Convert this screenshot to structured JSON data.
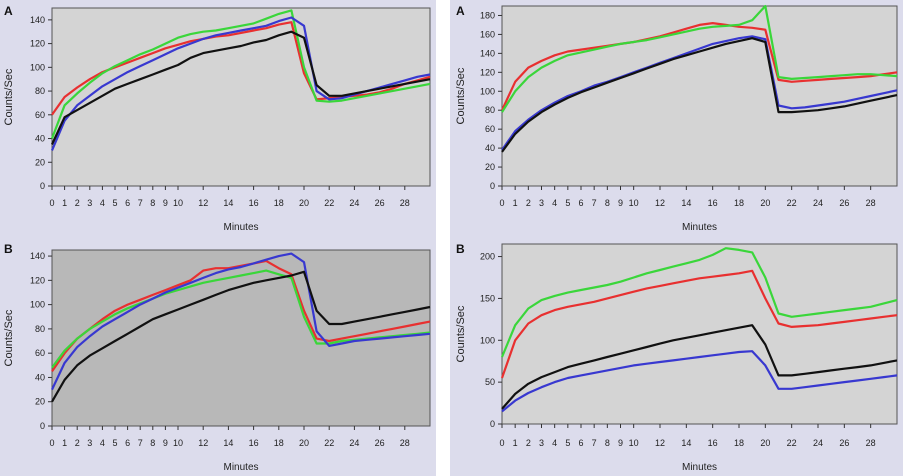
{
  "chart_data": [
    {
      "panel": "A",
      "type": "line",
      "xlabel": "Minutes",
      "ylabel": "Counts/Sec",
      "xlim": [
        0,
        30
      ],
      "ylim": [
        0,
        150
      ],
      "xticks": [
        "0",
        "1",
        "2",
        "3",
        "4",
        "5",
        "6",
        "7",
        "8",
        "9",
        "10",
        "12",
        "14",
        "16",
        "18",
        "20",
        "22",
        "24",
        "26",
        "28"
      ],
      "yticks": [
        0,
        20,
        40,
        60,
        80,
        100,
        120,
        140
      ],
      "x": [
        0,
        1,
        2,
        3,
        4,
        5,
        6,
        7,
        8,
        9,
        10,
        11,
        12,
        13,
        14,
        15,
        16,
        17,
        18,
        19,
        20,
        21,
        22,
        23,
        24,
        25,
        26,
        27,
        28,
        29,
        30
      ],
      "series": [
        {
          "name": "red",
          "color": "#e83030",
          "values": [
            60,
            75,
            83,
            90,
            96,
            100,
            104,
            108,
            112,
            116,
            119,
            122,
            124,
            126,
            127,
            129,
            131,
            133,
            136,
            138,
            95,
            73,
            74,
            75,
            76,
            77,
            79,
            82,
            86,
            89,
            92
          ]
        },
        {
          "name": "green",
          "color": "#3ad63a",
          "values": [
            40,
            68,
            78,
            87,
            95,
            101,
            106,
            111,
            115,
            120,
            125,
            128,
            130,
            131,
            133,
            135,
            137,
            141,
            145,
            148,
            100,
            72,
            71,
            72,
            74,
            76,
            78,
            80,
            82,
            84,
            86
          ]
        },
        {
          "name": "blue",
          "color": "#3838d0",
          "values": [
            30,
            55,
            68,
            76,
            84,
            90,
            96,
            101,
            106,
            111,
            116,
            120,
            124,
            127,
            129,
            131,
            133,
            135,
            139,
            142,
            135,
            80,
            73,
            74,
            77,
            80,
            83,
            86,
            89,
            92,
            94
          ]
        },
        {
          "name": "black",
          "color": "#111111",
          "values": [
            35,
            58,
            64,
            70,
            76,
            82,
            86,
            90,
            94,
            98,
            102,
            108,
            112,
            114,
            116,
            118,
            121,
            123,
            127,
            130,
            125,
            85,
            76,
            76,
            78,
            80,
            82,
            84,
            86,
            88,
            90
          ]
        }
      ]
    },
    {
      "panel": "B",
      "type": "line",
      "xlabel": "Minutes",
      "ylabel": "Counts/Sec",
      "xlim": [
        0,
        30
      ],
      "ylim": [
        0,
        145
      ],
      "xticks": [
        "0",
        "1",
        "2",
        "3",
        "4",
        "5",
        "6",
        "7",
        "8",
        "9",
        "10",
        "12",
        "14",
        "16",
        "18",
        "20",
        "22",
        "24",
        "26",
        "28"
      ],
      "yticks": [
        0,
        20,
        40,
        60,
        80,
        100,
        120,
        140
      ],
      "x": [
        0,
        1,
        2,
        3,
        4,
        5,
        6,
        7,
        8,
        9,
        10,
        11,
        12,
        13,
        14,
        15,
        16,
        17,
        18,
        19,
        20,
        21,
        22,
        23,
        24,
        25,
        26,
        27,
        28,
        29,
        30
      ],
      "series": [
        {
          "name": "red",
          "color": "#e83030",
          "values": [
            45,
            60,
            72,
            80,
            88,
            95,
            100,
            104,
            108,
            112,
            116,
            120,
            128,
            130,
            130,
            132,
            134,
            136,
            130,
            125,
            95,
            72,
            70,
            72,
            74,
            76,
            78,
            80,
            82,
            84,
            86
          ]
        },
        {
          "name": "green",
          "color": "#3ad63a",
          "values": [
            48,
            62,
            72,
            80,
            86,
            92,
            97,
            101,
            105,
            109,
            112,
            115,
            118,
            120,
            122,
            124,
            126,
            128,
            125,
            122,
            90,
            68,
            68,
            70,
            71,
            72,
            73,
            74,
            75,
            76,
            77
          ]
        },
        {
          "name": "blue",
          "color": "#3838d0",
          "values": [
            30,
            52,
            65,
            74,
            82,
            88,
            94,
            100,
            105,
            110,
            114,
            118,
            122,
            126,
            129,
            131,
            134,
            137,
            140,
            142,
            135,
            78,
            66,
            68,
            70,
            71,
            72,
            73,
            74,
            75,
            76
          ]
        },
        {
          "name": "black",
          "color": "#111111",
          "values": [
            20,
            38,
            50,
            58,
            64,
            70,
            76,
            82,
            88,
            92,
            96,
            100,
            104,
            108,
            112,
            115,
            118,
            120,
            122,
            124,
            127,
            95,
            84,
            84,
            86,
            88,
            90,
            92,
            94,
            96,
            98
          ]
        }
      ]
    },
    {
      "panel": "A",
      "type": "line",
      "xlabel": "Minutes",
      "ylabel": "Counts/Sec",
      "xlim": [
        0,
        30
      ],
      "ylim": [
        0,
        190
      ],
      "xticks": [
        "0",
        "1",
        "2",
        "3",
        "4",
        "5",
        "6",
        "7",
        "8",
        "9",
        "10",
        "12",
        "14",
        "16",
        "18",
        "20",
        "22",
        "24",
        "26",
        "28"
      ],
      "yticks": [
        0,
        20,
        40,
        60,
        80,
        100,
        120,
        140,
        160,
        180
      ],
      "x": [
        0,
        1,
        2,
        3,
        4,
        5,
        6,
        7,
        8,
        9,
        10,
        11,
        12,
        13,
        14,
        15,
        16,
        17,
        18,
        19,
        20,
        21,
        22,
        23,
        24,
        25,
        26,
        27,
        28,
        29,
        30
      ],
      "series": [
        {
          "name": "red",
          "color": "#e83030",
          "values": [
            80,
            110,
            125,
            132,
            138,
            142,
            144,
            146,
            148,
            150,
            152,
            155,
            158,
            162,
            166,
            170,
            172,
            170,
            168,
            167,
            165,
            112,
            110,
            111,
            112,
            113,
            114,
            115,
            116,
            118,
            120
          ]
        },
        {
          "name": "green",
          "color": "#3ad63a",
          "values": [
            78,
            100,
            115,
            125,
            132,
            138,
            141,
            144,
            147,
            150,
            152,
            154,
            157,
            160,
            163,
            166,
            168,
            169,
            170,
            175,
            190,
            115,
            113,
            114,
            115,
            116,
            117,
            118,
            118,
            117,
            116
          ]
        },
        {
          "name": "blue",
          "color": "#3838d0",
          "values": [
            38,
            58,
            70,
            80,
            88,
            95,
            100,
            106,
            110,
            115,
            120,
            125,
            130,
            135,
            140,
            145,
            150,
            153,
            156,
            158,
            155,
            85,
            82,
            83,
            85,
            87,
            89,
            92,
            95,
            98,
            101
          ]
        },
        {
          "name": "black",
          "color": "#111111",
          "values": [
            36,
            55,
            68,
            78,
            86,
            93,
            99,
            104,
            109,
            114,
            119,
            124,
            129,
            134,
            138,
            142,
            146,
            150,
            153,
            156,
            152,
            78,
            78,
            79,
            80,
            82,
            84,
            87,
            90,
            93,
            96
          ]
        }
      ]
    },
    {
      "panel": "B",
      "type": "line",
      "xlabel": "Minutes",
      "ylabel": "Counts/Sec",
      "xlim": [
        0,
        30
      ],
      "ylim": [
        0,
        215
      ],
      "xticks": [
        "0",
        "1",
        "2",
        "3",
        "4",
        "5",
        "6",
        "7",
        "8",
        "9",
        "10",
        "12",
        "14",
        "16",
        "18",
        "20",
        "22",
        "24",
        "26",
        "28"
      ],
      "yticks": [
        0,
        50,
        100,
        150,
        200
      ],
      "x": [
        0,
        1,
        2,
        3,
        4,
        5,
        6,
        7,
        8,
        9,
        10,
        11,
        12,
        13,
        14,
        15,
        16,
        17,
        18,
        19,
        20,
        21,
        22,
        23,
        24,
        25,
        26,
        27,
        28,
        29,
        30
      ],
      "series": [
        {
          "name": "green",
          "color": "#3ad63a",
          "values": [
            80,
            118,
            138,
            148,
            153,
            157,
            160,
            163,
            166,
            170,
            175,
            180,
            184,
            188,
            192,
            196,
            202,
            210,
            208,
            205,
            175,
            132,
            128,
            130,
            132,
            134,
            136,
            138,
            140,
            144,
            148
          ]
        },
        {
          "name": "red",
          "color": "#e83030",
          "values": [
            55,
            100,
            120,
            130,
            136,
            140,
            143,
            146,
            150,
            154,
            158,
            162,
            165,
            168,
            171,
            174,
            176,
            178,
            180,
            183,
            150,
            120,
            116,
            117,
            118,
            120,
            122,
            124,
            126,
            128,
            130
          ]
        },
        {
          "name": "black",
          "color": "#111111",
          "values": [
            18,
            36,
            48,
            56,
            62,
            68,
            72,
            76,
            80,
            84,
            88,
            92,
            96,
            100,
            103,
            106,
            109,
            112,
            115,
            118,
            95,
            58,
            58,
            60,
            62,
            64,
            66,
            68,
            70,
            73,
            76
          ]
        },
        {
          "name": "blue",
          "color": "#3838d0",
          "values": [
            15,
            28,
            37,
            44,
            50,
            55,
            58,
            61,
            64,
            67,
            70,
            72,
            74,
            76,
            78,
            80,
            82,
            84,
            86,
            87,
            70,
            42,
            42,
            44,
            46,
            48,
            50,
            52,
            54,
            56,
            58
          ]
        }
      ]
    }
  ]
}
